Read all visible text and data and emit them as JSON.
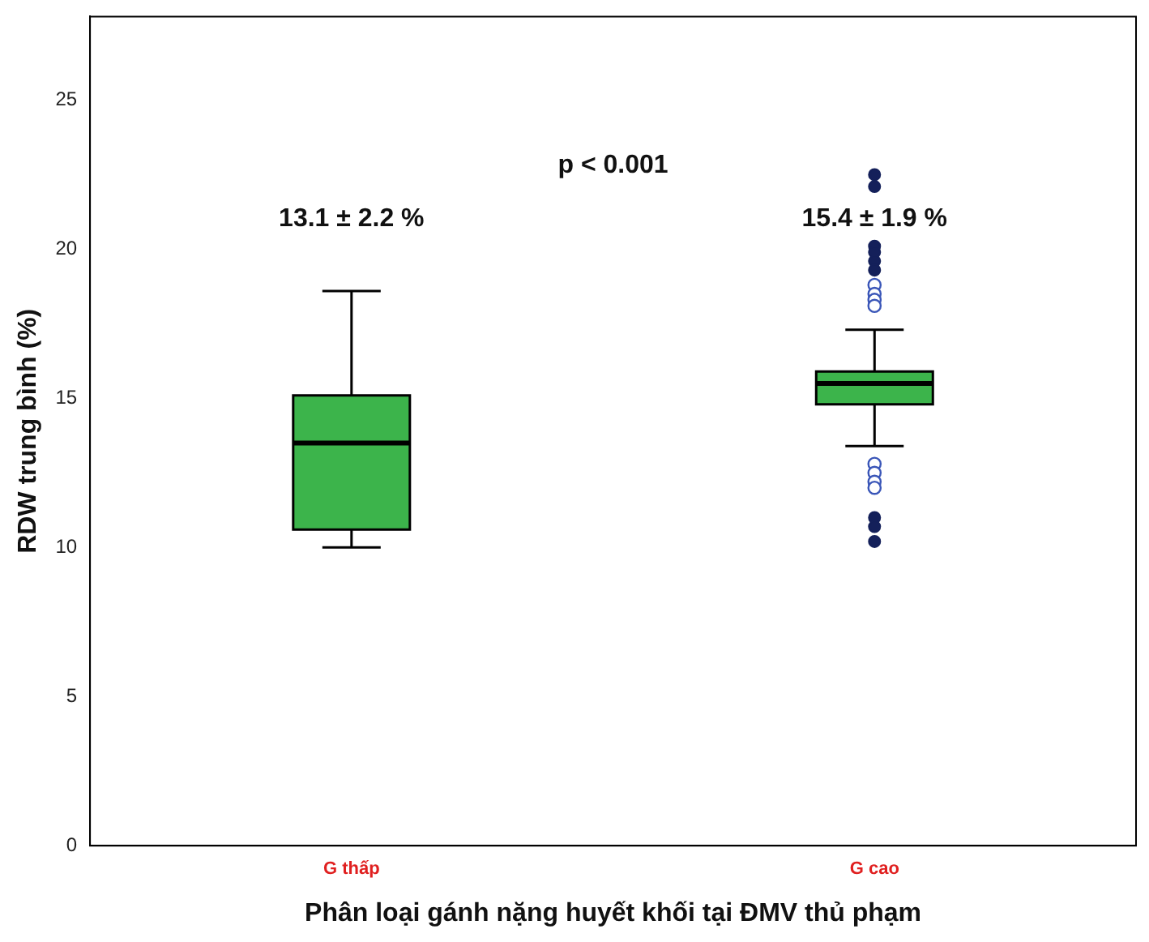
{
  "chart_data": {
    "type": "box",
    "xlabel": "Phân loại gánh nặng huyết khối tại ĐMV thủ phạm",
    "ylabel": "RDW trung bình (%)",
    "categories": [
      "G thấp",
      "G cao"
    ],
    "ylim": [
      0,
      27.8
    ],
    "yticks": [
      0,
      5,
      10,
      15,
      20,
      25
    ],
    "grid": false,
    "legend": false,
    "marker": "circle",
    "series": [
      {
        "color": "#3cb44b",
        "boxes": [
          {
            "low": 10.0,
            "q1": 10.6,
            "median": 13.5,
            "q3": 15.1,
            "high": 18.6
          },
          {
            "low": 13.4,
            "q1": 14.8,
            "median": 15.5,
            "q3": 15.9,
            "high": 17.3,
            "outliers": [
              18.8,
              18.5,
              18.3,
              18.1,
              12.8,
              12.5,
              12.2,
              12.0
            ]
          }
        ]
      },
      {
        "type": "scatter",
        "color": "#14205a",
        "x": [
          "G cao",
          "G cao",
          "G cao",
          "G cao",
          "G cao",
          "G cao",
          "G cao",
          "G cao",
          "G cao"
        ],
        "values": [
          22.5,
          22.1,
          20.1,
          19.9,
          19.6,
          19.3,
          11.0,
          10.7,
          10.2
        ]
      }
    ],
    "annotations": [
      "p < 0.001",
      "13.1 ± 2.2 %",
      "15.4 ± 1.9 %"
    ]
  }
}
